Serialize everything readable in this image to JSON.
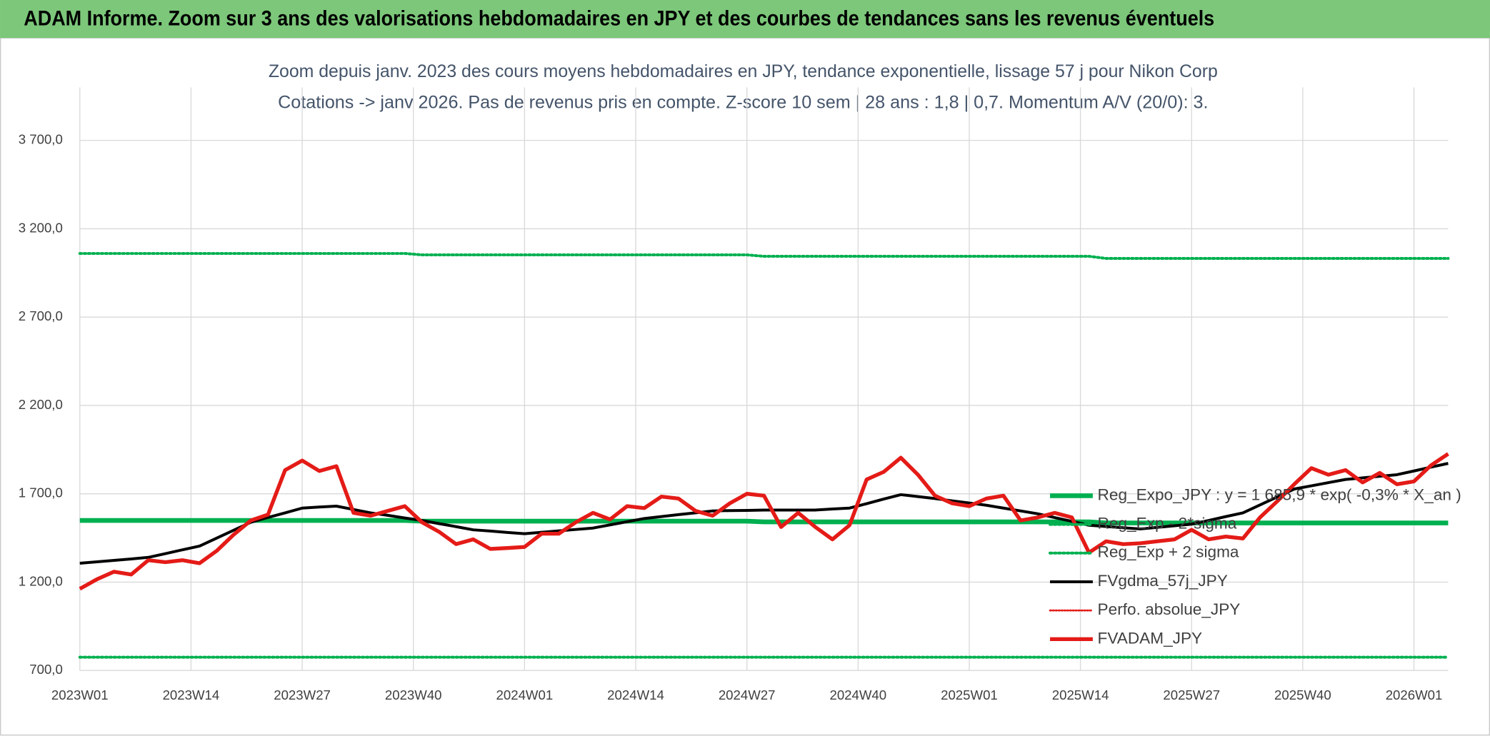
{
  "chart_data": {
    "type": "line",
    "title": "ADAM Informe. Zoom sur 3 ans des valorisations hebdomadaires en JPY et des courbes de tendances sans les revenus éventuels",
    "subtitle": [
      "Zoom depuis janv. 2023 des cours moyens hebdomadaires en JPY, tendance exponentielle, lissage 57 j pour Nikon Corp",
      "Cotations -> janv 2026. Pas de revenus pris en compte. Z-score 10 sem | 28 ans : 1,8 | 0,7. Momentum A/V (20/0): 3."
    ],
    "x": [
      0,
      2,
      4,
      6,
      8,
      10,
      12,
      14,
      16,
      18,
      20,
      22,
      24,
      26,
      28,
      30,
      32,
      34,
      36,
      38,
      40,
      42,
      44,
      46,
      48,
      50,
      52,
      54,
      56,
      58,
      60,
      62,
      64,
      66,
      68,
      70,
      72,
      74,
      76,
      78,
      80,
      82,
      84,
      86,
      88,
      90,
      92,
      94,
      96,
      98,
      100,
      102,
      104,
      106,
      108,
      110,
      112,
      114,
      116,
      118,
      120,
      122,
      124,
      126,
      128,
      130,
      132,
      134,
      136,
      138,
      140,
      142,
      144,
      146,
      148,
      150,
      152,
      154,
      156,
      158,
      160
    ],
    "xlim": [
      0,
      160
    ],
    "xticks": [
      {
        "value": 0,
        "label": "2023W01"
      },
      {
        "value": 13,
        "label": "2023W14"
      },
      {
        "value": 26,
        "label": "2023W27"
      },
      {
        "value": 39,
        "label": "2023W40"
      },
      {
        "value": 52,
        "label": "2024W01"
      },
      {
        "value": 65,
        "label": "2024W14"
      },
      {
        "value": 78,
        "label": "2024W27"
      },
      {
        "value": 91,
        "label": "2024W40"
      },
      {
        "value": 104,
        "label": "2025W01"
      },
      {
        "value": 117,
        "label": "2025W14"
      },
      {
        "value": 130,
        "label": "2025W27"
      },
      {
        "value": 143,
        "label": "2025W40"
      },
      {
        "value": 156,
        "label": "2026W01"
      }
    ],
    "ylim": [
      700,
      4000
    ],
    "yticks": [
      {
        "value": 700,
        "label": "700,0"
      },
      {
        "value": 1200,
        "label": "1 200,0"
      },
      {
        "value": 1700,
        "label": "1 700,0"
      },
      {
        "value": 2200,
        "label": "2 200,0"
      },
      {
        "value": 2700,
        "label": "2 700,0"
      },
      {
        "value": 3200,
        "label": "3 200,0"
      },
      {
        "value": 3700,
        "label": "3 700,0"
      }
    ],
    "grid": true,
    "legend": "right",
    "series": [
      {
        "name": "Reg_Expo_JPY : y = 1 685,9 * exp( -0,3% *  X_an )",
        "color": "#00b050",
        "style": "solid",
        "width": 5,
        "values": [
          1549,
          1549,
          1549,
          1549,
          1549,
          1549,
          1549,
          1549,
          1549,
          1549,
          1549,
          1549,
          1549,
          1549,
          1549,
          1549,
          1549,
          1549,
          1549,
          1549,
          1545,
          1545,
          1545,
          1545,
          1545,
          1545,
          1545,
          1545,
          1545,
          1545,
          1545,
          1545,
          1545,
          1545,
          1545,
          1545,
          1545,
          1545,
          1545,
          1545,
          1541,
          1541,
          1541,
          1541,
          1541,
          1541,
          1541,
          1541,
          1541,
          1541,
          1541,
          1541,
          1541,
          1541,
          1541,
          1541,
          1541,
          1541,
          1541,
          1541,
          1535,
          1535,
          1535,
          1535,
          1535,
          1535,
          1535,
          1535,
          1535,
          1535,
          1535,
          1535,
          1535,
          1535,
          1535,
          1535,
          1535,
          1535,
          1535,
          1535,
          1535
        ]
      },
      {
        "name": "Reg_Exp - 2*sigma",
        "color": "#00b050",
        "style": "dotted",
        "width": 3,
        "values": [
          775,
          775,
          775,
          775,
          775,
          775,
          775,
          775,
          775,
          775,
          775,
          775,
          775,
          775,
          775,
          775,
          775,
          775,
          775,
          775,
          775,
          775,
          775,
          775,
          775,
          775,
          775,
          775,
          775,
          775,
          775,
          775,
          775,
          775,
          775,
          775,
          775,
          775,
          775,
          775,
          775,
          775,
          775,
          775,
          775,
          775,
          775,
          775,
          775,
          775,
          775,
          775,
          775,
          775,
          775,
          775,
          775,
          775,
          775,
          775,
          775,
          775,
          775,
          775,
          775,
          775,
          775,
          775,
          775,
          775,
          775,
          775,
          775,
          775,
          775,
          775,
          775,
          775,
          775,
          775,
          775
        ]
      },
      {
        "name": "Reg_Exp + 2 sigma",
        "color": "#00b050",
        "style": "dotted",
        "width": 3,
        "values": [
          3060,
          3060,
          3060,
          3060,
          3060,
          3060,
          3060,
          3060,
          3060,
          3060,
          3060,
          3060,
          3060,
          3060,
          3060,
          3060,
          3060,
          3060,
          3060,
          3060,
          3052,
          3052,
          3052,
          3052,
          3052,
          3052,
          3052,
          3052,
          3052,
          3052,
          3052,
          3052,
          3052,
          3052,
          3052,
          3052,
          3052,
          3052,
          3052,
          3052,
          3044,
          3044,
          3044,
          3044,
          3044,
          3044,
          3044,
          3044,
          3044,
          3044,
          3044,
          3044,
          3044,
          3044,
          3044,
          3044,
          3044,
          3044,
          3044,
          3044,
          3032,
          3032,
          3032,
          3032,
          3032,
          3032,
          3032,
          3032,
          3032,
          3032,
          3032,
          3032,
          3032,
          3032,
          3032,
          3032,
          3032,
          3032,
          3032,
          3032,
          3032
        ]
      },
      {
        "name": "FVgdma_57j_JPY",
        "color": "#000000",
        "style": "solid",
        "width": 3,
        "values": [
          1307,
          1315,
          1323,
          1331,
          1340,
          1361,
          1383,
          1404,
          1449,
          1494,
          1539,
          1566,
          1592,
          1619,
          1625,
          1630,
          1611,
          1592,
          1578,
          1563,
          1549,
          1531,
          1514,
          1496,
          1489,
          1481,
          1474,
          1482,
          1490,
          1498,
          1506,
          1524,
          1542,
          1560,
          1571,
          1582,
          1592,
          1603,
          1605,
          1606,
          1608,
          1608,
          1608,
          1608,
          1614,
          1619,
          1644,
          1670,
          1695,
          1684,
          1673,
          1660,
          1648,
          1635,
          1619,
          1603,
          1587,
          1565,
          1544,
          1522,
          1515,
          1508,
          1501,
          1510,
          1519,
          1528,
          1549,
          1571,
          1592,
          1637,
          1682,
          1727,
          1745,
          1763,
          1781,
          1790,
          1799,
          1808,
          1829,
          1851,
          1872
        ]
      },
      {
        "name": "Perfo. absolue_JPY",
        "color": "#e41b17",
        "style": "dotted",
        "width": 2
      },
      {
        "name": "FVADAM_JPY",
        "color": "#e41b17",
        "style": "solid",
        "width": 4,
        "values": [
          1162,
          1216,
          1259,
          1243,
          1324,
          1313,
          1324,
          1307,
          1377,
          1469,
          1549,
          1582,
          1834,
          1888,
          1829,
          1856,
          1592,
          1576,
          1603,
          1630,
          1539,
          1485,
          1415,
          1442,
          1388,
          1393,
          1399,
          1474,
          1474,
          1539,
          1592,
          1555,
          1630,
          1619,
          1684,
          1673,
          1603,
          1576,
          1646,
          1700,
          1689,
          1512,
          1592,
          1512,
          1442,
          1522,
          1781,
          1824,
          1904,
          1808,
          1689,
          1646,
          1630,
          1673,
          1689,
          1549,
          1566,
          1592,
          1566,
          1367,
          1431,
          1415,
          1420,
          1431,
          1442,
          1496,
          1442,
          1458,
          1447,
          1566,
          1657,
          1754,
          1845,
          1808,
          1834,
          1764,
          1818,
          1754,
          1770,
          1861,
          1926
        ]
      }
    ]
  }
}
